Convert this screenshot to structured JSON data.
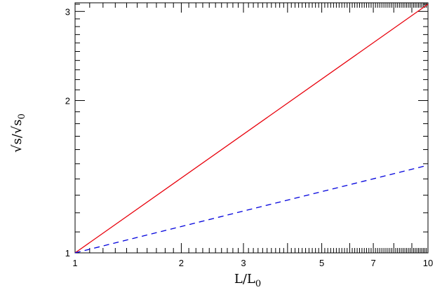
{
  "chart_data": {
    "type": "line",
    "title": "",
    "xlabel": {
      "main": "L/L",
      "sub": "0"
    },
    "ylabel": {
      "main": "√s/√s",
      "sub": "0"
    },
    "xscale": "log",
    "yscale": "log",
    "xlim": [
      1,
      10
    ],
    "ylim": [
      1,
      3.12
    ],
    "x_ticks_major": [
      1,
      2,
      3,
      5,
      7,
      10
    ],
    "x_tick_labels": [
      "1",
      "2",
      "3",
      "5",
      "7",
      "10"
    ],
    "y_ticks_major": [
      1,
      2,
      3
    ],
    "y_tick_labels": [
      "1",
      "2",
      "3"
    ],
    "grid": false,
    "legend": "none",
    "series": [
      {
        "x": [
          1,
          10
        ],
        "y": [
          1,
          3.1
        ],
        "color": "#e8000b",
        "style": "solid"
      },
      {
        "x": [
          1,
          10
        ],
        "y": [
          1,
          1.49
        ],
        "color": "#0000dd",
        "style": "dashed"
      }
    ]
  }
}
